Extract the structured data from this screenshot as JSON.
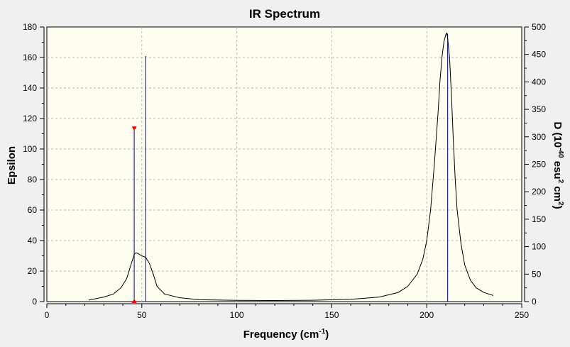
{
  "chart_data": {
    "type": "line",
    "title": "IR Spectrum",
    "xlabel": "Frequency (cm",
    "xlabel_sup": "-1",
    "xlabel_end": ")",
    "ylabel": "Epsilon",
    "y2label": {
      "prefix": "D (10",
      "sup1": "-40",
      "mid": " esu",
      "sup2": "2",
      "mid2": " cm",
      "sup3": "2",
      "end": ")"
    },
    "xlim": [
      0,
      250
    ],
    "ylim": [
      0,
      180
    ],
    "y2lim": [
      0,
      500
    ],
    "xticks": [
      0,
      50,
      100,
      150,
      200,
      250
    ],
    "yticks": [
      0,
      20,
      40,
      60,
      80,
      100,
      120,
      140,
      160,
      180
    ],
    "y2ticks": [
      0,
      50,
      100,
      150,
      200,
      250,
      300,
      350,
      400,
      450,
      500
    ],
    "grid": true,
    "colors": {
      "spectrum": "#000000",
      "sticks": "#00008b",
      "marker": "#ff0000",
      "plot_bg": "#fdfdf0"
    },
    "spectrum": {
      "x": [
        22,
        30,
        35,
        39,
        42,
        44,
        46,
        47,
        48,
        50,
        52,
        54,
        56,
        58,
        62,
        70,
        80,
        100,
        120,
        140,
        160,
        175,
        185,
        190,
        195,
        198,
        200,
        202,
        204,
        206,
        207,
        208,
        209,
        210,
        210.5,
        211,
        212,
        213,
        214,
        215,
        216,
        218,
        220,
        223,
        226,
        230,
        235
      ],
      "y": [
        1,
        3,
        5,
        9,
        15,
        23,
        31,
        32,
        31.5,
        30,
        29,
        25,
        18,
        10,
        5,
        2.5,
        1.2,
        0.8,
        0.7,
        0.9,
        1.5,
        3,
        6,
        10,
        18,
        28,
        40,
        60,
        90,
        125,
        145,
        160,
        170,
        175,
        176,
        173,
        160,
        135,
        105,
        80,
        60,
        38,
        24,
        14,
        9,
        6,
        4
      ]
    },
    "sticks": [
      {
        "x": 46,
        "d": 315,
        "marker": true
      },
      {
        "x": 52,
        "d": 447,
        "marker": false
      },
      {
        "x": 211,
        "d": 488,
        "marker": false
      }
    ]
  }
}
